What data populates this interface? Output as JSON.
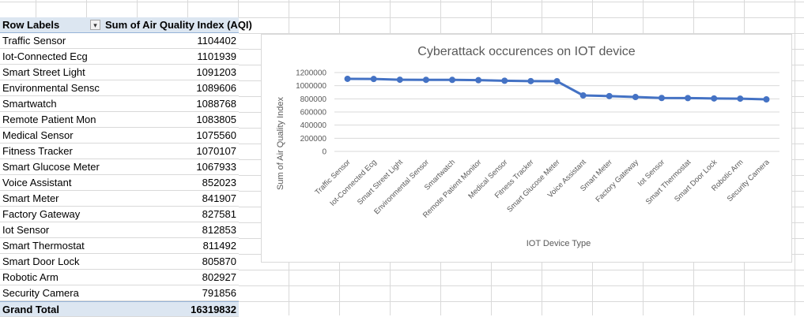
{
  "pivot": {
    "header_label": "Row Labels",
    "header_value": "Sum of Air Quality Index (AQI)",
    "filter_icon": "filter-dropdown-icon",
    "rows": [
      {
        "label": "Traffic Sensor",
        "value": "1104402"
      },
      {
        "label": "Iot-Connected Ecg",
        "value": "1101939"
      },
      {
        "label": "Smart Street Light",
        "value": "1091203"
      },
      {
        "label": "Environmental Sensc",
        "value": "1089606"
      },
      {
        "label": "Smartwatch",
        "value": "1088768"
      },
      {
        "label": "Remote Patient Mon",
        "value": "1083805"
      },
      {
        "label": "Medical Sensor",
        "value": "1075560"
      },
      {
        "label": "Fitness Tracker",
        "value": "1070107"
      },
      {
        "label": "Smart Glucose Meter",
        "value": "1067933"
      },
      {
        "label": "Voice Assistant",
        "value": "852023"
      },
      {
        "label": "Smart Meter",
        "value": "841907"
      },
      {
        "label": "Factory Gateway",
        "value": "827581"
      },
      {
        "label": "Iot Sensor",
        "value": "812853"
      },
      {
        "label": "Smart Thermostat",
        "value": "811492"
      },
      {
        "label": "Smart Door Lock",
        "value": "805870"
      },
      {
        "label": "Robotic Arm",
        "value": "802927"
      },
      {
        "label": "Security Camera",
        "value": "791856"
      }
    ],
    "total_label": "Grand Total",
    "total_value": "16319832"
  },
  "chart_data": {
    "type": "line",
    "title": "Cyberattack occurences on IOT device",
    "xlabel": "IOT Device Type",
    "ylabel": "Sum of Air Quality Index",
    "ylim": [
      0,
      1200000
    ],
    "yticks": [
      "1200000",
      "1000000",
      "800000",
      "600000",
      "400000",
      "200000",
      "0"
    ],
    "grid": true,
    "color": "#4472c4",
    "categories": [
      "Traffic Sensor",
      "Iot-Connected Ecg",
      "Smart Street Light",
      "Environmental Sensor",
      "Smartwatch",
      "Remote Patient Monitor",
      "Medical Sensor",
      "Fitness Tracker",
      "Smart Glucose Meter",
      "Voice Assistant",
      "Smart Meter",
      "Factory Gateway",
      "Iot Sensor",
      "Smart Thermostat",
      "Smart Door Lock",
      "Robotic Arm",
      "Security Camera"
    ],
    "values": [
      1104402,
      1101939,
      1091203,
      1089606,
      1088768,
      1083805,
      1075560,
      1070107,
      1067933,
      852023,
      841907,
      827581,
      812853,
      811492,
      805870,
      802927,
      791856
    ]
  }
}
